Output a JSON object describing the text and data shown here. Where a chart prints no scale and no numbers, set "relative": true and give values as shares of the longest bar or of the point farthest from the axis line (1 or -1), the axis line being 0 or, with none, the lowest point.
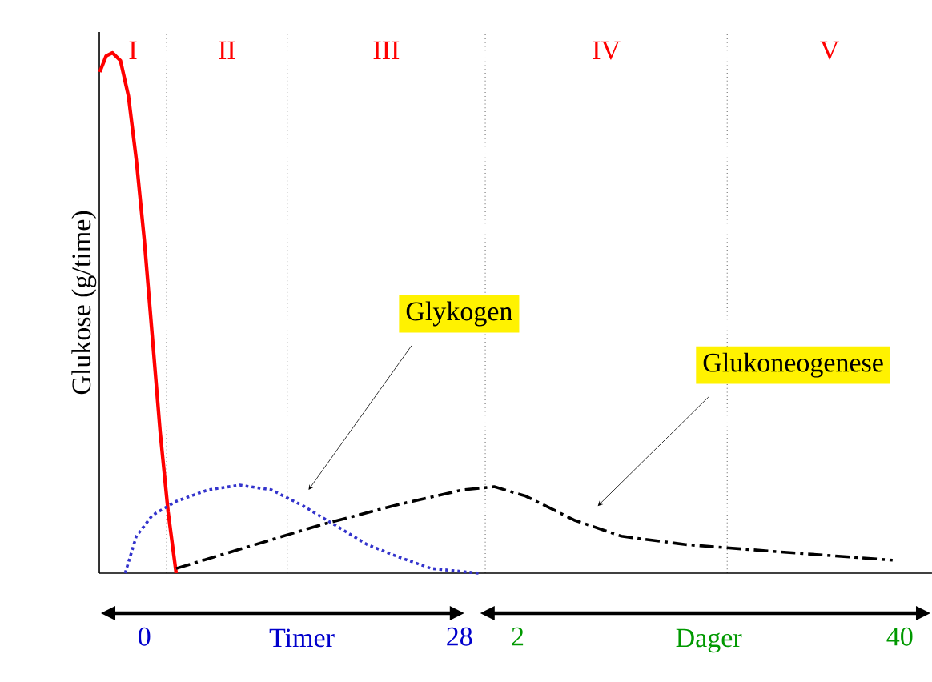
{
  "chart_data": {
    "type": "line",
    "relative": true,
    "ylabel": "Glukose (g/time)",
    "xlabel": "Timer",
    "x2label": "Dager",
    "xlim": [
      -4,
      70
    ],
    "xticks": [
      0,
      28
    ],
    "x2lim": [
      -39.6,
      43.2
    ],
    "x2ticks": [
      2,
      40
    ],
    "series": [
      {
        "color": "#ff0000",
        "line_style": "solid",
        "x": [
          -3.96,
          -3.39,
          -2.83,
          -2.12,
          -1.41,
          -0.71,
          0,
          0.71,
          1.41,
          2.12,
          2.83
        ],
        "values": [
          0.963,
          0.994,
          1.0,
          0.985,
          0.917,
          0.794,
          0.64,
          0.455,
          0.271,
          0.117,
          0
        ]
      },
      {
        "color": "#3333cc",
        "line_style": "dotted",
        "x": [
          -1.7,
          -0.71,
          0.71,
          2.83,
          5.66,
          8.49,
          11.3,
          14.14,
          16.97,
          19.8,
          22.6,
          25.5,
          29.7
        ],
        "values": [
          0,
          0.071,
          0.111,
          0.138,
          0.16,
          0.169,
          0.16,
          0.129,
          0.092,
          0.055,
          0.031,
          0.009,
          0
        ]
      },
      {
        "color": "#000000",
        "line_style": "dashdot",
        "x": [
          2.83,
          8.49,
          15.56,
          22.6,
          28.3,
          31.1,
          33.9,
          38.2,
          42.4,
          48.1,
          55.2,
          66.5
        ],
        "values": [
          0.009,
          0.046,
          0.092,
          0.132,
          0.16,
          0.166,
          0.148,
          0.102,
          0.071,
          0.055,
          0.043,
          0.025
        ]
      }
    ],
    "ref_lines": [
      {
        "axis": "x",
        "value": 1.98,
        "line_style": "dotted"
      },
      {
        "axis": "x",
        "value": 12.7,
        "line_style": "dotted"
      },
      {
        "axis": "x",
        "value": 30.3,
        "line_style": "dotted"
      },
      {
        "axis": "x",
        "value": 51.8,
        "line_style": "dotted"
      }
    ],
    "annotations": [
      "I",
      "II",
      "III",
      "IV",
      "V",
      {
        "text": "Glykogen",
        "x": 14.6,
        "y": 0.16
      },
      {
        "text": "Glukoneogenese",
        "x": 40.3,
        "y": 0.129
      }
    ]
  }
}
